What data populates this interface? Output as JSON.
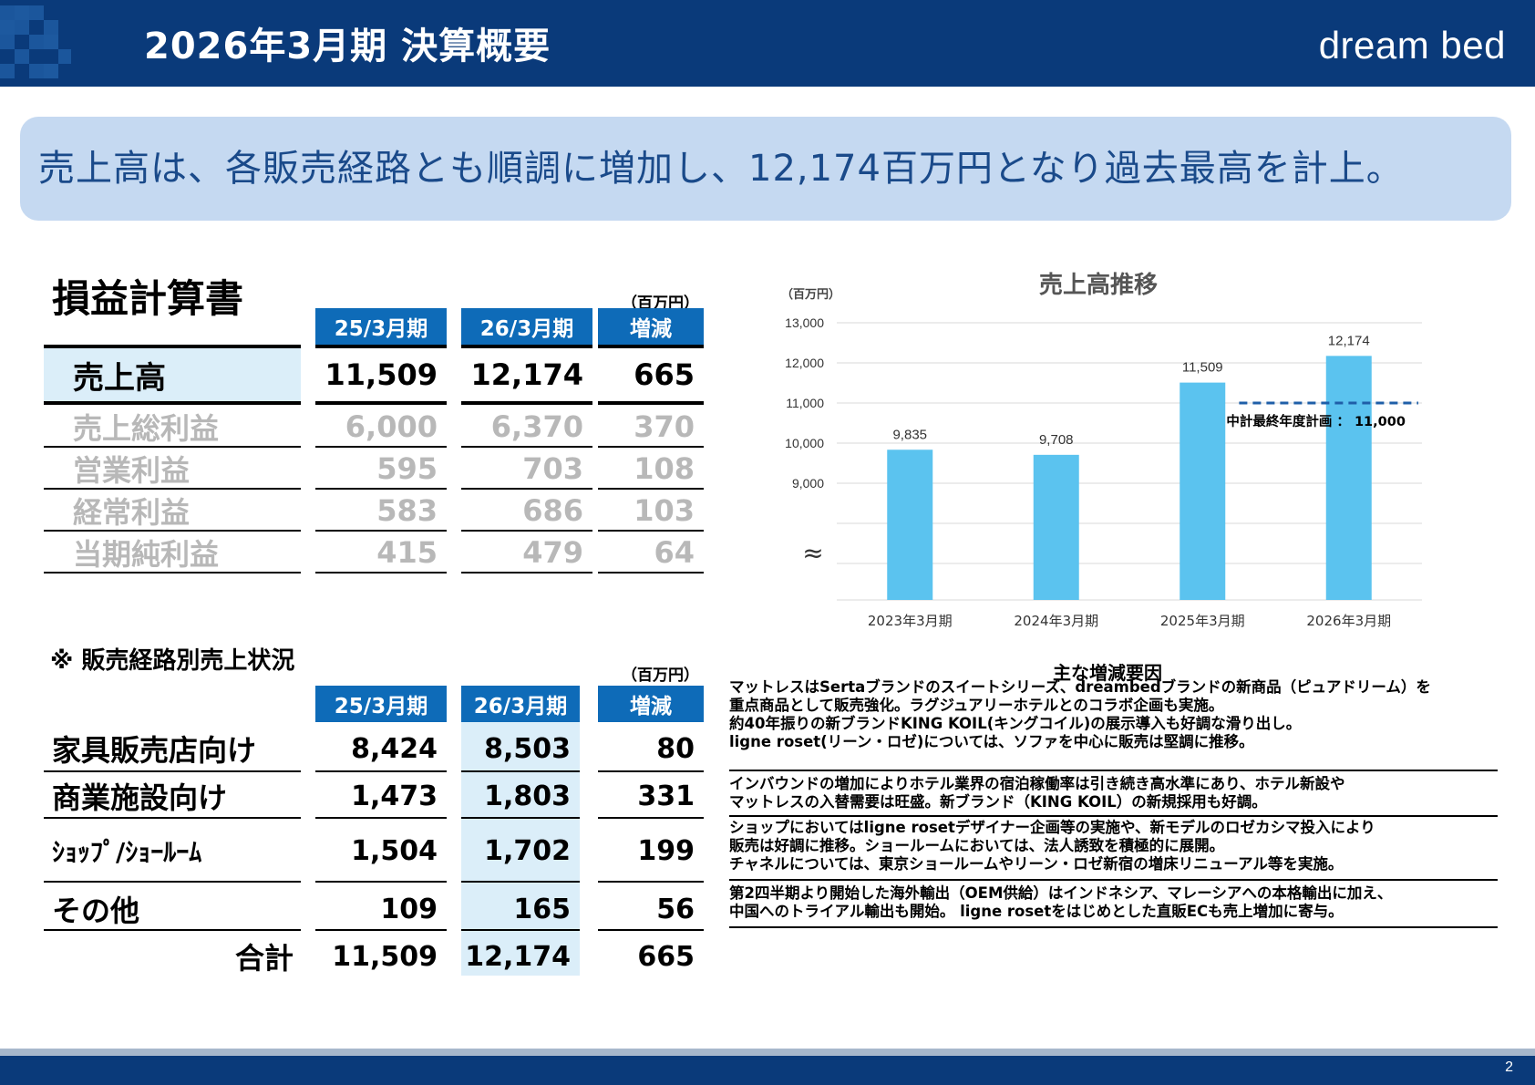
{
  "header": {
    "title": "2026年3月期 決算概要",
    "logo": "dream bed"
  },
  "banner": {
    "text": "売上高は、各販売経路とも順調に増加し、12,174百万円となり過去最高を計上。"
  },
  "income_statement": {
    "title": "損益計算書",
    "unit": "（百万円）",
    "columns": [
      "25/3月期",
      "26/3月期",
      "増減"
    ],
    "rows": [
      {
        "label": "売上高",
        "values": [
          "11,509",
          "12,174",
          "665"
        ]
      },
      {
        "label": "売上総利益",
        "values": [
          "6,000",
          "6,370",
          "370"
        ]
      },
      {
        "label": "営業利益",
        "values": [
          "595",
          "703",
          "108"
        ]
      },
      {
        "label": "経常利益",
        "values": [
          "583",
          "686",
          "103"
        ]
      },
      {
        "label": "当期純利益",
        "values": [
          "415",
          "479",
          "64"
        ]
      }
    ]
  },
  "channel_sales": {
    "title": "※ 販売経路別売上状況",
    "unit": "（百万円）",
    "columns": [
      "25/3月期",
      "26/3月期",
      "増減"
    ],
    "rows": [
      {
        "label": "家具販売店向け",
        "values": [
          "8,424",
          "8,503",
          "80"
        ]
      },
      {
        "label": "商業施設向け",
        "values": [
          "1,473",
          "1,803",
          "331"
        ]
      },
      {
        "label": "ｼｮｯﾌﾟ/ｼｮｰﾙｰﾑ",
        "values": [
          "1,504",
          "1,702",
          "199"
        ]
      },
      {
        "label": "その他",
        "values": [
          "109",
          "165",
          "56"
        ]
      }
    ],
    "total": {
      "label": "合計",
      "values": [
        "11,509",
        "12,174",
        "665"
      ]
    }
  },
  "chart_data": {
    "type": "bar",
    "title": "売上高推移",
    "ylabel": "（百万円）",
    "categories": [
      "2023年3月期",
      "2024年3月期",
      "2025年3月期",
      "2026年3月期"
    ],
    "values": [
      9835,
      9708,
      11509,
      12174
    ],
    "data_labels": [
      "9,835",
      "9,708",
      "11,509",
      "12,174"
    ],
    "ylim": [
      9000,
      13000
    ],
    "yticks": [
      13000,
      12000,
      11000,
      10000,
      9000
    ],
    "ytick_labels": [
      "13,000",
      "12,000",
      "11,000",
      "10,000",
      "9,000"
    ],
    "axis_break": true,
    "axis_break_symbol": "≈",
    "bar_color": "#5bc3ef",
    "reference_line": {
      "value": 11000,
      "label": "中計最終年度計画 ： 11,000",
      "color": "#1f5fa8",
      "style": "dashed"
    },
    "grid": true
  },
  "factors": {
    "title": "主な増減要因",
    "items": [
      {
        "lines": [
          "マットレスはSertaブランドのスイートシリーズ、dreambedブランドの新商品（ピュアドリーム）を",
          "重点商品として販売強化。ラグジュアリーホテルとのコラボ企画も実施。",
          "約40年振りの新ブランドKING KOIL(キングコイル)の展示導入も好調な滑り出し。",
          "ligne roset(リーン・ロゼ)については、ソファを中心に販売は堅調に推移。"
        ]
      },
      {
        "lines": [
          "インバウンドの増加によりホテル業界の宿泊稼働率は引き続き高水準にあり、ホテル新設や",
          "マットレスの入替需要は旺盛。新ブランド（KING KOIL）の新規採用も好調。"
        ]
      },
      {
        "lines": [
          "ショップにおいてはligne rosetデザイナー企画等の実施や、新モデルのロゼカシマ投入により",
          "販売は好調に推移。ショールームにおいては、法人誘致を積極的に展開。",
          "チャネルについては、東京ショールームやリーン・ロゼ新宿の増床リニューアル等を実施。"
        ]
      },
      {
        "lines": [
          "第2四半期より開始した海外輸出（OEM供給）はインドネシア、マレーシアへの本格輸出に加え、",
          "中国へのトライアル輸出も開始。 ligne rosetをはじめとした直販ECも売上増加に寄与。"
        ]
      }
    ]
  },
  "footer": {
    "page": "2"
  }
}
